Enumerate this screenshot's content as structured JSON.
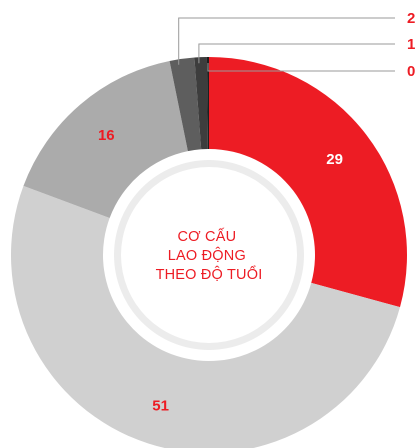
{
  "chart_data": {
    "type": "pie",
    "title": "CƠ CẤU\nLAO ĐỘNG\nTHEO ĐỘ TUỔI",
    "title_lines": [
      "CƠ CẤU",
      "LAO ĐỘNG",
      "THEO ĐỘ TUỔI"
    ],
    "slices": [
      {
        "value": 29,
        "label": "29",
        "color": "#ed1c24",
        "label_color": "#ffffff"
      },
      {
        "value": 51,
        "label": "51",
        "color": "#d0d0d0",
        "label_color": "#ed1c24"
      },
      {
        "value": 16,
        "label": "16",
        "color": "#ababab",
        "label_color": "#ed1c24"
      },
      {
        "value": 2,
        "label": "2",
        "color": "#5e5e5e",
        "label_color": "#ed1c24"
      },
      {
        "value": 1,
        "label": "1",
        "color": "#3d3d3d",
        "label_color": "#ed1c24"
      },
      {
        "value": 0,
        "label": "0",
        "color": "#1f1f1f",
        "label_color": "#ed1c24"
      }
    ],
    "inner_ring_color": "#ececec",
    "center_disc_color": "#ffffff",
    "title_color": "#ed1c24",
    "leader_line_color": "#9a9a9a"
  }
}
